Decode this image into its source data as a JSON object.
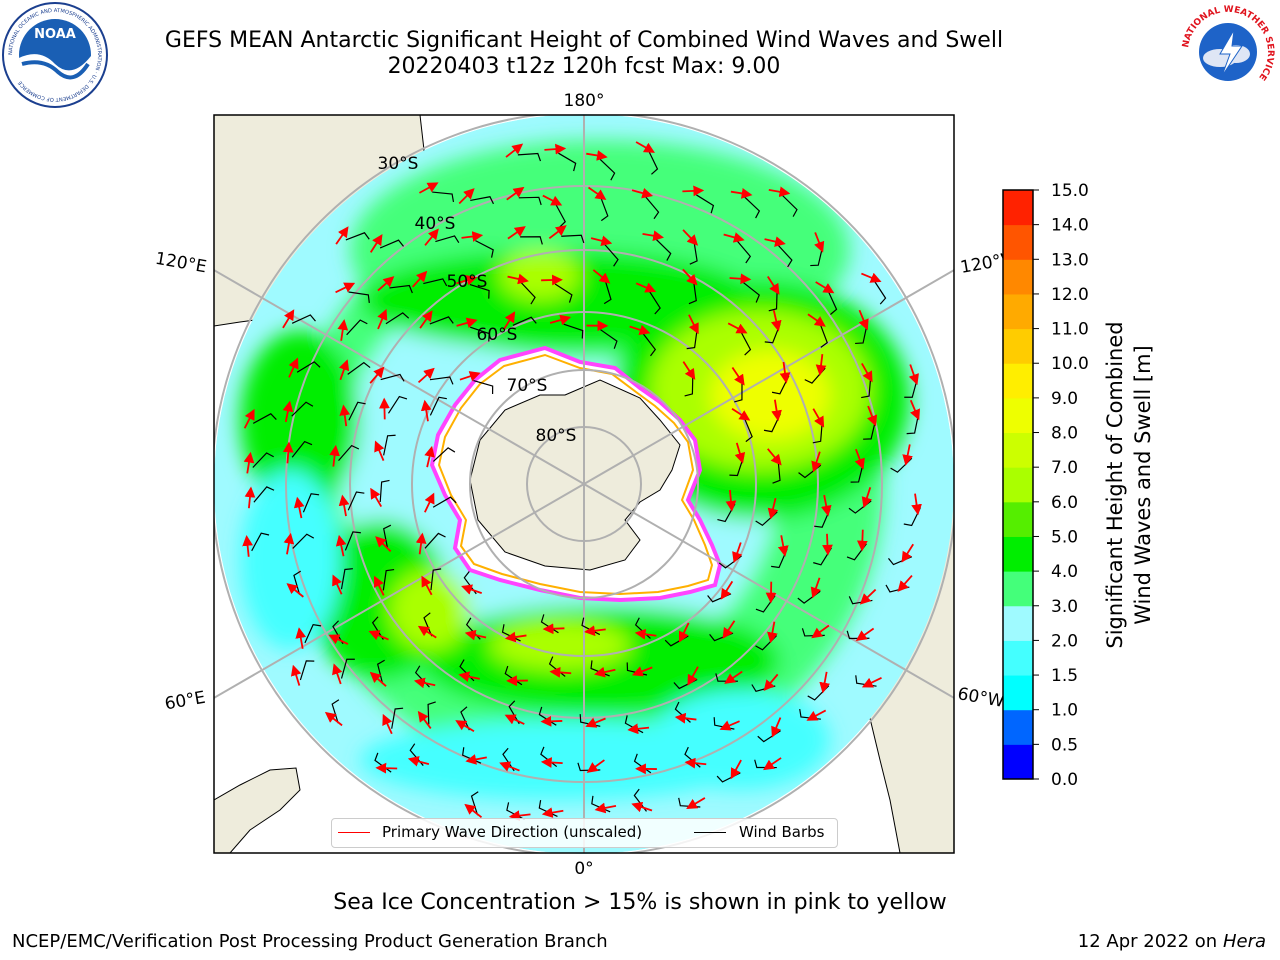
{
  "header": {
    "title_line1": "GEFS MEAN Antarctic Significant Height of Combined Wind Waves and Swell",
    "title_line2": "20220403 t12z 120h fcst   Max: 9.00"
  },
  "logos": {
    "noaa_text": "NOAA",
    "noaa_ring": "NATIONAL OCEANIC AND ATMOSPHERIC ADMINISTRATION · U.S. DEPARTMENT OF COMMERCE",
    "nws_ring": "NATIONAL WEATHER SERVICE"
  },
  "map": {
    "longitude_labels": {
      "top": "180°",
      "upper_left": "120°E",
      "upper_right": "120°W",
      "lower_left": "60°E",
      "lower_right": "60°W",
      "bottom": "0°"
    },
    "latitude_labels": [
      "30°S",
      "40°S",
      "50°S",
      "60°S",
      "70°S",
      "80°S"
    ],
    "colors": {
      "land": "#eeecdc",
      "ice_edge": "#ff44ff",
      "grid": "#b0b0b0",
      "arrow": "#ff0000",
      "barb": "#000000"
    }
  },
  "legend": {
    "wave_direction": "Primary Wave Direction (unscaled)",
    "wind_barbs": "Wind Barbs"
  },
  "colorbar": {
    "label_line1": "Significant Height of Combined",
    "label_line2": "Wind Waves and Swell [m]",
    "ticks": [
      "0.0",
      "0.5",
      "1.0",
      "1.5",
      "2.0",
      "3.0",
      "4.0",
      "5.0",
      "6.0",
      "7.0",
      "8.0",
      "9.0",
      "10.0",
      "11.0",
      "12.0",
      "13.0",
      "14.0",
      "15.0"
    ],
    "colors": [
      "#0000ff",
      "#0066ff",
      "#00ffff",
      "#44ffff",
      "#9ffaff",
      "#44ff7a",
      "#00ee00",
      "#55ee00",
      "#aaff00",
      "#ccff00",
      "#eeff00",
      "#ffee00",
      "#ffcc00",
      "#ffaa00",
      "#ff8800",
      "#ff5500",
      "#ff2200"
    ]
  },
  "footer": {
    "ice_note": "Sea Ice Concentration > 15% is shown in pink to yellow",
    "credit": "NCEP/EMC/Verification Post Processing Product Generation Branch",
    "date": "12 Apr 2022 on ",
    "machine": "Hera"
  }
}
